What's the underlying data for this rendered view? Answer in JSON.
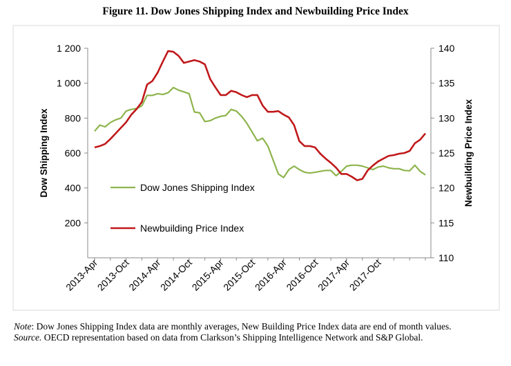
{
  "title": "Figure 11. Dow Jones Shipping Index and Newbuilding Price Index",
  "note_label": "Note",
  "note_text": ": Dow Jones Shipping Index data are monthly averages, New Building Price Index data are end of month values.",
  "source_label": "Source.",
  "source_text": " OECD representation based on data from Clarkson’s Shipping Intelligence Network and S&P Global.",
  "chart_data": {
    "type": "line",
    "title": "Figure 11. Dow Jones Shipping Index and Newbuilding Price Index",
    "ylabel": "Dow Shipping Index",
    "y2label": "Newbuilding Price Index",
    "ylim": [
      0,
      1200
    ],
    "y2lim": [
      110,
      140
    ],
    "yticks": [
      200,
      400,
      600,
      800,
      1000,
      1200
    ],
    "yticklabels": [
      "200",
      "400",
      "600",
      "800",
      "1 000",
      "1 200"
    ],
    "y2ticks": [
      110,
      115,
      120,
      125,
      130,
      135,
      140
    ],
    "y2ticklabels": [
      "110",
      "115",
      "120",
      "125",
      "130",
      "135",
      "140"
    ],
    "xticks": [
      "2013-Apr",
      "2013-Oct",
      "2014-Apr",
      "2014-Oct",
      "2015-Apr",
      "2015-Oct",
      "2016-Apr",
      "2016-Oct",
      "2017-Apr",
      "2017-Oct"
    ],
    "colors": {
      "dow": "#8db44c",
      "nb": "#c0181a"
    },
    "series": [
      {
        "name": "Dow Jones Shipping Index",
        "axis": "left",
        "values": [
          725,
          760,
          750,
          775,
          790,
          800,
          840,
          850,
          855,
          870,
          930,
          930,
          940,
          935,
          945,
          975,
          960,
          950,
          940,
          835,
          830,
          780,
          785,
          800,
          810,
          815,
          850,
          840,
          810,
          770,
          720,
          670,
          685,
          640,
          560,
          480,
          460,
          505,
          525,
          505,
          490,
          485,
          490,
          495,
          500,
          500,
          470,
          495,
          525,
          530,
          530,
          525,
          515,
          505,
          520,
          525,
          515,
          510,
          510,
          500,
          498,
          530,
          495,
          475
        ]
      },
      {
        "name": "Newbuilding Price Index",
        "axis": "right",
        "values": [
          125.8,
          126.0,
          126.3,
          127.0,
          127.8,
          128.6,
          129.4,
          130.5,
          131.3,
          132.3,
          134.8,
          135.3,
          136.5,
          138.1,
          139.6,
          139.5,
          138.9,
          137.9,
          138.1,
          138.3,
          138.1,
          137.7,
          135.6,
          134.4,
          133.3,
          133.3,
          133.9,
          133.7,
          133.3,
          133.0,
          133.3,
          133.3,
          131.8,
          130.9,
          130.9,
          131.0,
          130.5,
          130.1,
          129.0,
          126.7,
          126.0,
          126.0,
          125.8,
          124.9,
          124.2,
          123.6,
          122.9,
          122.0,
          122.0,
          121.6,
          121.1,
          121.3,
          122.5,
          123.2,
          123.8,
          124.2,
          124.6,
          124.7,
          124.9,
          125.0,
          125.3,
          126.4,
          126.9,
          127.8
        ]
      }
    ],
    "legend": [
      "Dow Jones Shipping Index",
      "Newbuilding Price Index"
    ],
    "legend_position": "lower-left inside plot"
  }
}
